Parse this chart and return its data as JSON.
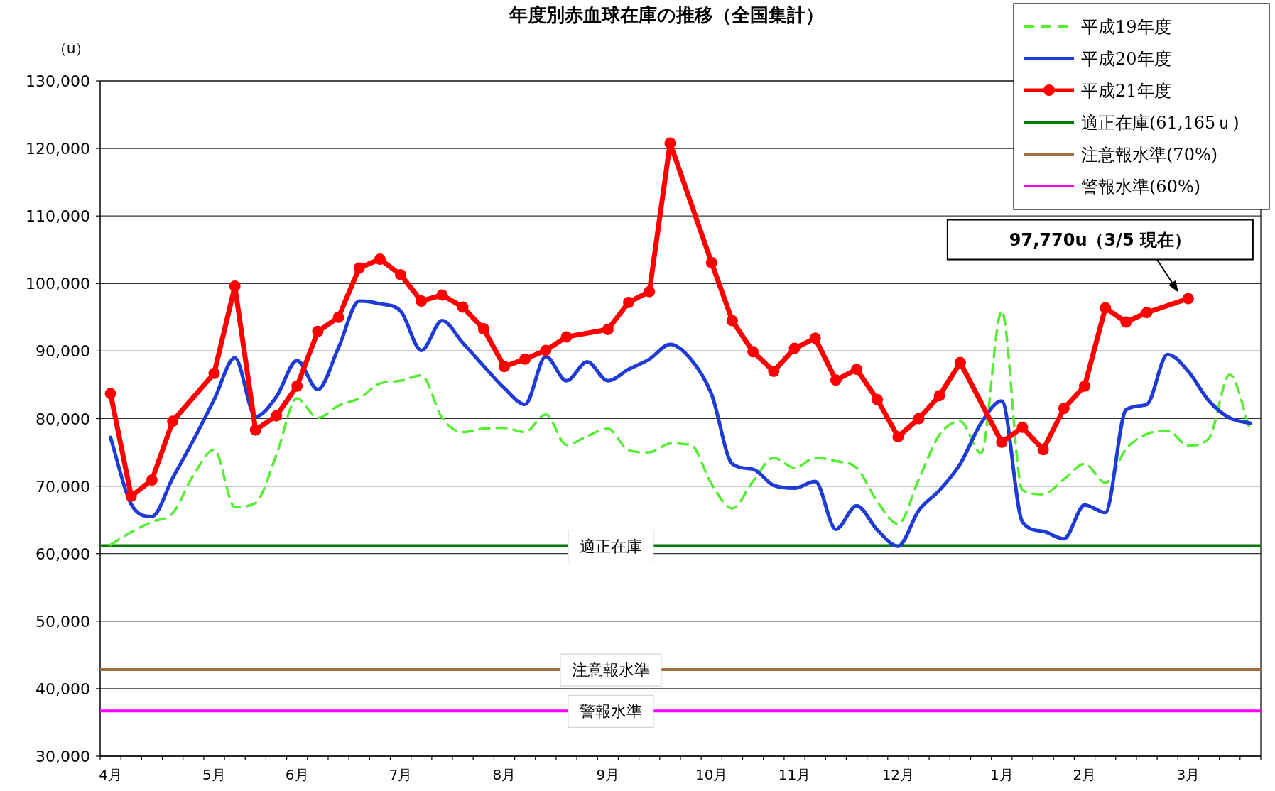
{
  "chart_data": {
    "type": "line",
    "title": "年度別赤血球在庫の推移（全国集計）",
    "ylabel": "（u）",
    "categories": [
      "4月",
      null,
      null,
      null,
      null,
      "5月",
      null,
      null,
      null,
      "6月",
      null,
      null,
      null,
      null,
      "7月",
      null,
      null,
      null,
      null,
      "8月",
      null,
      null,
      null,
      null,
      "9月",
      null,
      null,
      null,
      null,
      "10月",
      null,
      null,
      null,
      "11月",
      null,
      null,
      null,
      null,
      "12月",
      null,
      null,
      null,
      null,
      "1月",
      null,
      null,
      null,
      "2月",
      null,
      null,
      null,
      null,
      "3月",
      null,
      null,
      null
    ],
    "ylim": [
      30000,
      130000
    ],
    "yticks": [
      {
        "value": 30000,
        "label": "30,000"
      },
      {
        "value": 40000,
        "label": "40,000"
      },
      {
        "value": 50000,
        "label": "50,000"
      },
      {
        "value": 60000,
        "label": "60,000"
      },
      {
        "value": 70000,
        "label": "70,000"
      },
      {
        "value": 80000,
        "label": "80,000"
      },
      {
        "value": 90000,
        "label": "90,000"
      },
      {
        "value": 100000,
        "label": "100,000"
      },
      {
        "value": 110000,
        "label": "110,000"
      },
      {
        "value": 120000,
        "label": "120,000"
      },
      {
        "value": 130000,
        "label": "130,000"
      }
    ],
    "grid": "y",
    "legend": "top right",
    "series": [
      {
        "name": "平成19年度",
        "color": "#55ee33",
        "line_style": "dashed",
        "marker": "none",
        "values": [
          61300,
          63200,
          64700,
          66000,
          71600,
          75400,
          66900,
          67500,
          74600,
          83000,
          80100,
          81900,
          83000,
          85200,
          85600,
          86400,
          80100,
          78000,
          78500,
          78600,
          78000,
          80600,
          76100,
          77400,
          78500,
          75300,
          75000,
          76300,
          76100,
          70300,
          66700,
          70700,
          74200,
          72700,
          74200,
          73700,
          72700,
          67700,
          64400,
          71000,
          77600,
          79600,
          74900,
          95900,
          69400,
          68800,
          71000,
          73300,
          70500,
          75500,
          77700,
          78200,
          76000,
          77100,
          86500,
          78200
        ]
      },
      {
        "name": "平成20年度",
        "color": "#1f3bd6",
        "line_style": "solid",
        "marker": "none",
        "values": [
          77200,
          67300,
          65500,
          71200,
          76800,
          82800,
          89000,
          80300,
          83200,
          88600,
          84300,
          90500,
          97400,
          97000,
          95900,
          90100,
          94500,
          91200,
          87800,
          84500,
          82100,
          89200,
          85600,
          88400,
          85600,
          87300,
          88800,
          91000,
          88800,
          83600,
          73300,
          72500,
          70100,
          69700,
          70700,
          63600,
          67100,
          63500,
          61100,
          66400,
          69400,
          73300,
          79300,
          82600,
          64700,
          63300,
          62200,
          67200,
          66100,
          81300,
          82100,
          89500,
          87000,
          82600,
          80100,
          79300
        ]
      },
      {
        "name": "平成21年度",
        "color": "#ff0000",
        "line_style": "solid",
        "marker": "circle",
        "values": [
          83700,
          68500,
          70900,
          79600,
          null,
          86700,
          99600,
          78300,
          80400,
          84800,
          92900,
          95000,
          102300,
          103600,
          101300,
          97400,
          98300,
          96500,
          93300,
          87700,
          88800,
          90100,
          92100,
          null,
          93200,
          97200,
          98800,
          120800,
          null,
          103100,
          94500,
          89900,
          87000,
          90400,
          91900,
          85700,
          87300,
          82800,
          77300,
          80000,
          83400,
          88300,
          null,
          76500,
          78700,
          75400,
          81500,
          84800,
          96400,
          94300,
          95700,
          null,
          97770,
          null,
          null,
          null
        ]
      }
    ],
    "ref_lines": [
      {
        "axis": "y",
        "value": 61165,
        "label": "適正在庫(61,165ｕ)",
        "color": "#0a7a0a"
      },
      {
        "axis": "y",
        "value": 42816,
        "label": "注意報水準(70%)",
        "color": "#a0703c"
      },
      {
        "axis": "y",
        "value": 36699,
        "label": "警報水準(60%)",
        "color": "#ff00ff"
      }
    ],
    "annotations": [
      {
        "text": "97,770u（3/5 現在）",
        "x": "3月",
        "y": 97770
      },
      {
        "text": "適正在庫",
        "y": 61165
      },
      {
        "text": "注意報水準",
        "y": 42816
      },
      {
        "text": "警報水準",
        "y": 36699
      }
    ]
  }
}
